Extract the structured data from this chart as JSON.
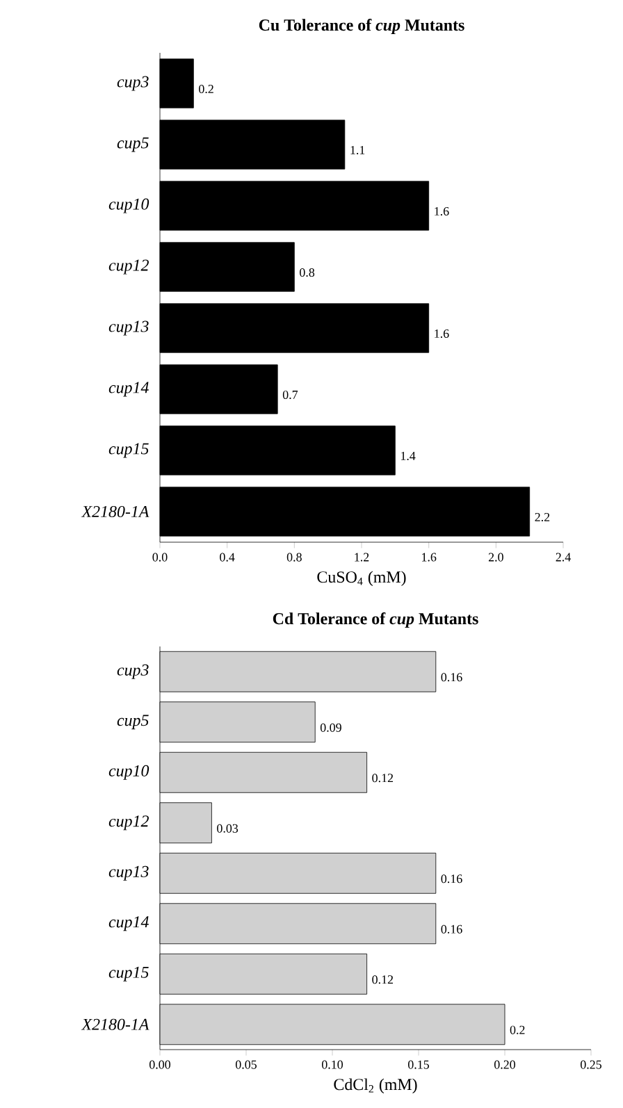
{
  "chart_data": [
    {
      "type": "bar",
      "orientation": "horizontal",
      "title": "**Cu Tolerance of *cup* Mutants**",
      "xlabel": "CuSO$_{4}$  (mM)",
      "categories": [
        "cup3",
        "cup5",
        "cup10",
        "cup12",
        "cup13",
        "cup14",
        "cup15",
        "X2180-1A"
      ],
      "values": [
        0.2,
        1.1,
        1.6,
        0.8,
        1.6,
        0.7,
        1.4,
        2.2
      ],
      "color": "#000000",
      "data_labels": true,
      "xlim": [
        0,
        2.4
      ],
      "xticks": [
        {
          "value": 0,
          "label": "0.0"
        },
        {
          "value": 0.4,
          "label": "0.4"
        },
        {
          "value": 0.8,
          "label": "0.8"
        },
        {
          "value": 1.2,
          "label": "1.2"
        },
        {
          "value": 1.6,
          "label": "1.6"
        },
        {
          "value": 2.0,
          "label": "2.0"
        },
        {
          "value": 2.4,
          "label": "2.4"
        }
      ]
    },
    {
      "type": "bar",
      "orientation": "horizontal",
      "title": "**Cd Tolerance of *cup* Mutants**",
      "xlabel": "CdCl$_{2}$  (mM)",
      "categories": [
        "cup3",
        "cup5",
        "cup10",
        "cup12",
        "cup13",
        "cup14",
        "cup15",
        "X2180-1A"
      ],
      "values": [
        0.16,
        0.09,
        0.12,
        0.03,
        0.16,
        0.16,
        0.12,
        0.2
      ],
      "color": "#d0d0d0",
      "data_labels": true,
      "xlim": [
        0,
        0.25
      ],
      "xticks": [
        {
          "value": 0,
          "label": "0.00"
        },
        {
          "value": 0.05,
          "label": "0.05"
        },
        {
          "value": 0.1,
          "label": "0.10"
        },
        {
          "value": 0.15,
          "label": "0.15"
        },
        {
          "value": 0.2,
          "label": "0.20"
        },
        {
          "value": 0.25,
          "label": "0.25"
        }
      ]
    }
  ]
}
